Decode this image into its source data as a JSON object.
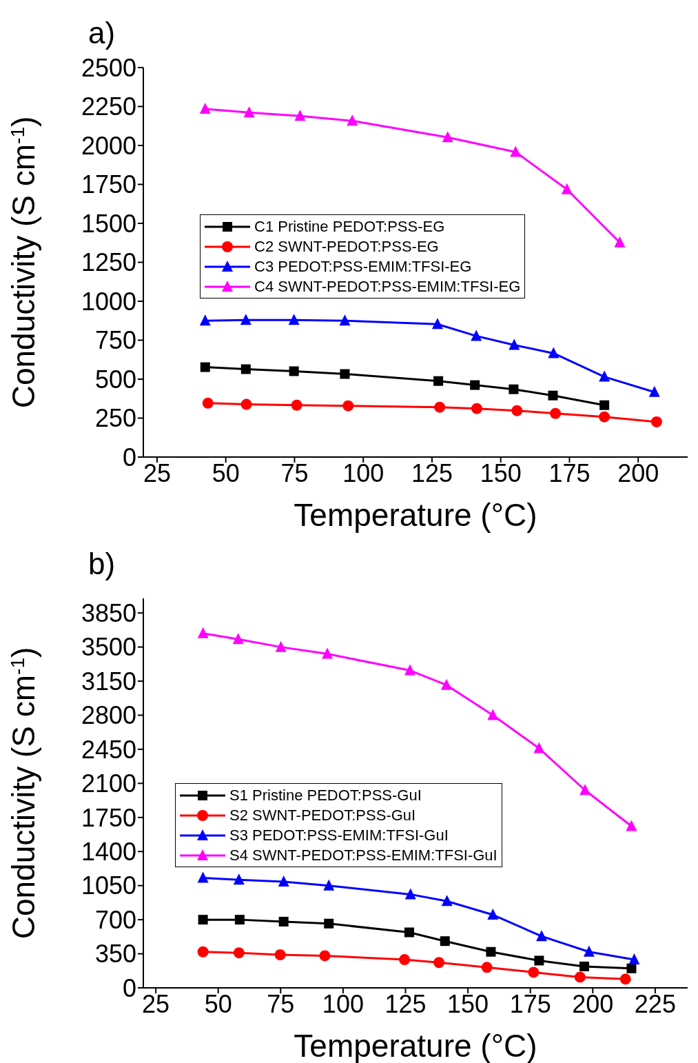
{
  "chart_data": [
    {
      "type": "line",
      "title": "a)",
      "xlabel": "Temperature (°C)",
      "ylabel": "Conductivity (S cm$^{-1}$)",
      "xlim": [
        20,
        218
      ],
      "xticks": [
        25,
        50,
        75,
        100,
        125,
        150,
        175,
        200
      ],
      "ylim": [
        0,
        2500
      ],
      "yticks": [
        0,
        250,
        500,
        750,
        1000,
        1250,
        1500,
        1750,
        2000,
        2250,
        2500
      ],
      "legend": "center",
      "grid": false,
      "line_style": "solid",
      "series": [
        {
          "name": "C1 Pristine PEDOT:PSS-EG",
          "color": "#000000",
          "marker": "square",
          "x": [
            42.5,
            57.3,
            74.8,
            93.3,
            127.3,
            140.6,
            154.7,
            169,
            187.7
          ],
          "values": [
            577,
            564,
            551,
            533,
            488,
            462,
            435,
            395,
            333
          ]
        },
        {
          "name": "C2 SWNT-PEDOT:PSS-EG",
          "color": "#ff0000",
          "marker": "circle",
          "x": [
            43.5,
            57.5,
            75.8,
            94.5,
            127.8,
            141.3,
            155.9,
            169.9,
            187.7,
            206.7
          ],
          "values": [
            346,
            338,
            333,
            329,
            320,
            311,
            298,
            280,
            258,
            226
          ]
        },
        {
          "name": "C3 PEDOT:PSS-EMIM:TFSI-EG",
          "color": "#0000ff",
          "marker": "triangle",
          "x": [
            42.5,
            57.3,
            74.8,
            93.3,
            127,
            141.1,
            154.9,
            169.2,
            187.7,
            205.9
          ],
          "values": [
            875,
            879,
            879,
            875,
            853,
            777,
            719,
            666,
            515,
            417
          ]
        },
        {
          "name": "C4 SWNT-PEDOT:PSS-EMIM:TFSI-EG",
          "color": "#ff00ff",
          "marker": "triangle",
          "x": [
            42.5,
            58.5,
            77,
            96,
            130.7,
            155.4,
            174.1,
            193.3
          ],
          "values": [
            2234,
            2211,
            2189,
            2158,
            2052,
            1958,
            1718,
            1377
          ]
        }
      ]
    },
    {
      "type": "line",
      "title": "b)",
      "xlabel": "Temperature (°C)",
      "ylabel": "Conductivity (S cm$^{-1}$)",
      "xlim": [
        20,
        238
      ],
      "xticks": [
        25,
        50,
        75,
        100,
        125,
        150,
        175,
        200,
        225
      ],
      "ylim": [
        0,
        4000
      ],
      "yticks": [
        0,
        350,
        700,
        1050,
        1400,
        1750,
        2100,
        2450,
        2800,
        3150,
        3500,
        3850
      ],
      "legend": "left",
      "grid": false,
      "line_style": "solid",
      "series": [
        {
          "name": "S1 Pristine PEDOT:PSS-GuI",
          "color": "#000000",
          "marker": "square",
          "x": [
            43.9,
            58.6,
            76.2,
            94.3,
            126.5,
            140.8,
            159.2,
            178.5,
            196.6,
            215.5
          ],
          "values": [
            700,
            700,
            680,
            660,
            570,
            480,
            370,
            280,
            220,
            200
          ]
        },
        {
          "name": "S2 SWNT-PEDOT:PSS-GuI",
          "color": "#ff0000",
          "marker": "circle",
          "x": [
            43.9,
            58.3,
            74.8,
            92.7,
            124.6,
            138.4,
            157.6,
            176.3,
            194.9,
            213.1
          ],
          "values": [
            370,
            360,
            340,
            330,
            290,
            260,
            210,
            160,
            110,
            90
          ]
        },
        {
          "name": "S3 PEDOT:PSS-EMIM:TFSI-GuI",
          "color": "#0000ff",
          "marker": "triangle",
          "x": [
            43.9,
            58.3,
            76.2,
            94.3,
            127,
            141.6,
            160,
            179.5,
            198.5,
            216.6
          ],
          "values": [
            1130,
            1110,
            1090,
            1050,
            960,
            890,
            750,
            530,
            370,
            290
          ]
        },
        {
          "name": "S4 SWNT-PEDOT:PSS-EMIM:TFSI-GuI",
          "color": "#ff00ff",
          "marker": "triangle",
          "x": [
            43.9,
            58,
            75.1,
            93.7,
            126.8,
            141.4,
            160,
            178.5,
            196.9,
            215.5
          ],
          "values": [
            3640,
            3580,
            3500,
            3430,
            3260,
            3110,
            2800,
            2460,
            2030,
            1660
          ]
        }
      ]
    }
  ]
}
